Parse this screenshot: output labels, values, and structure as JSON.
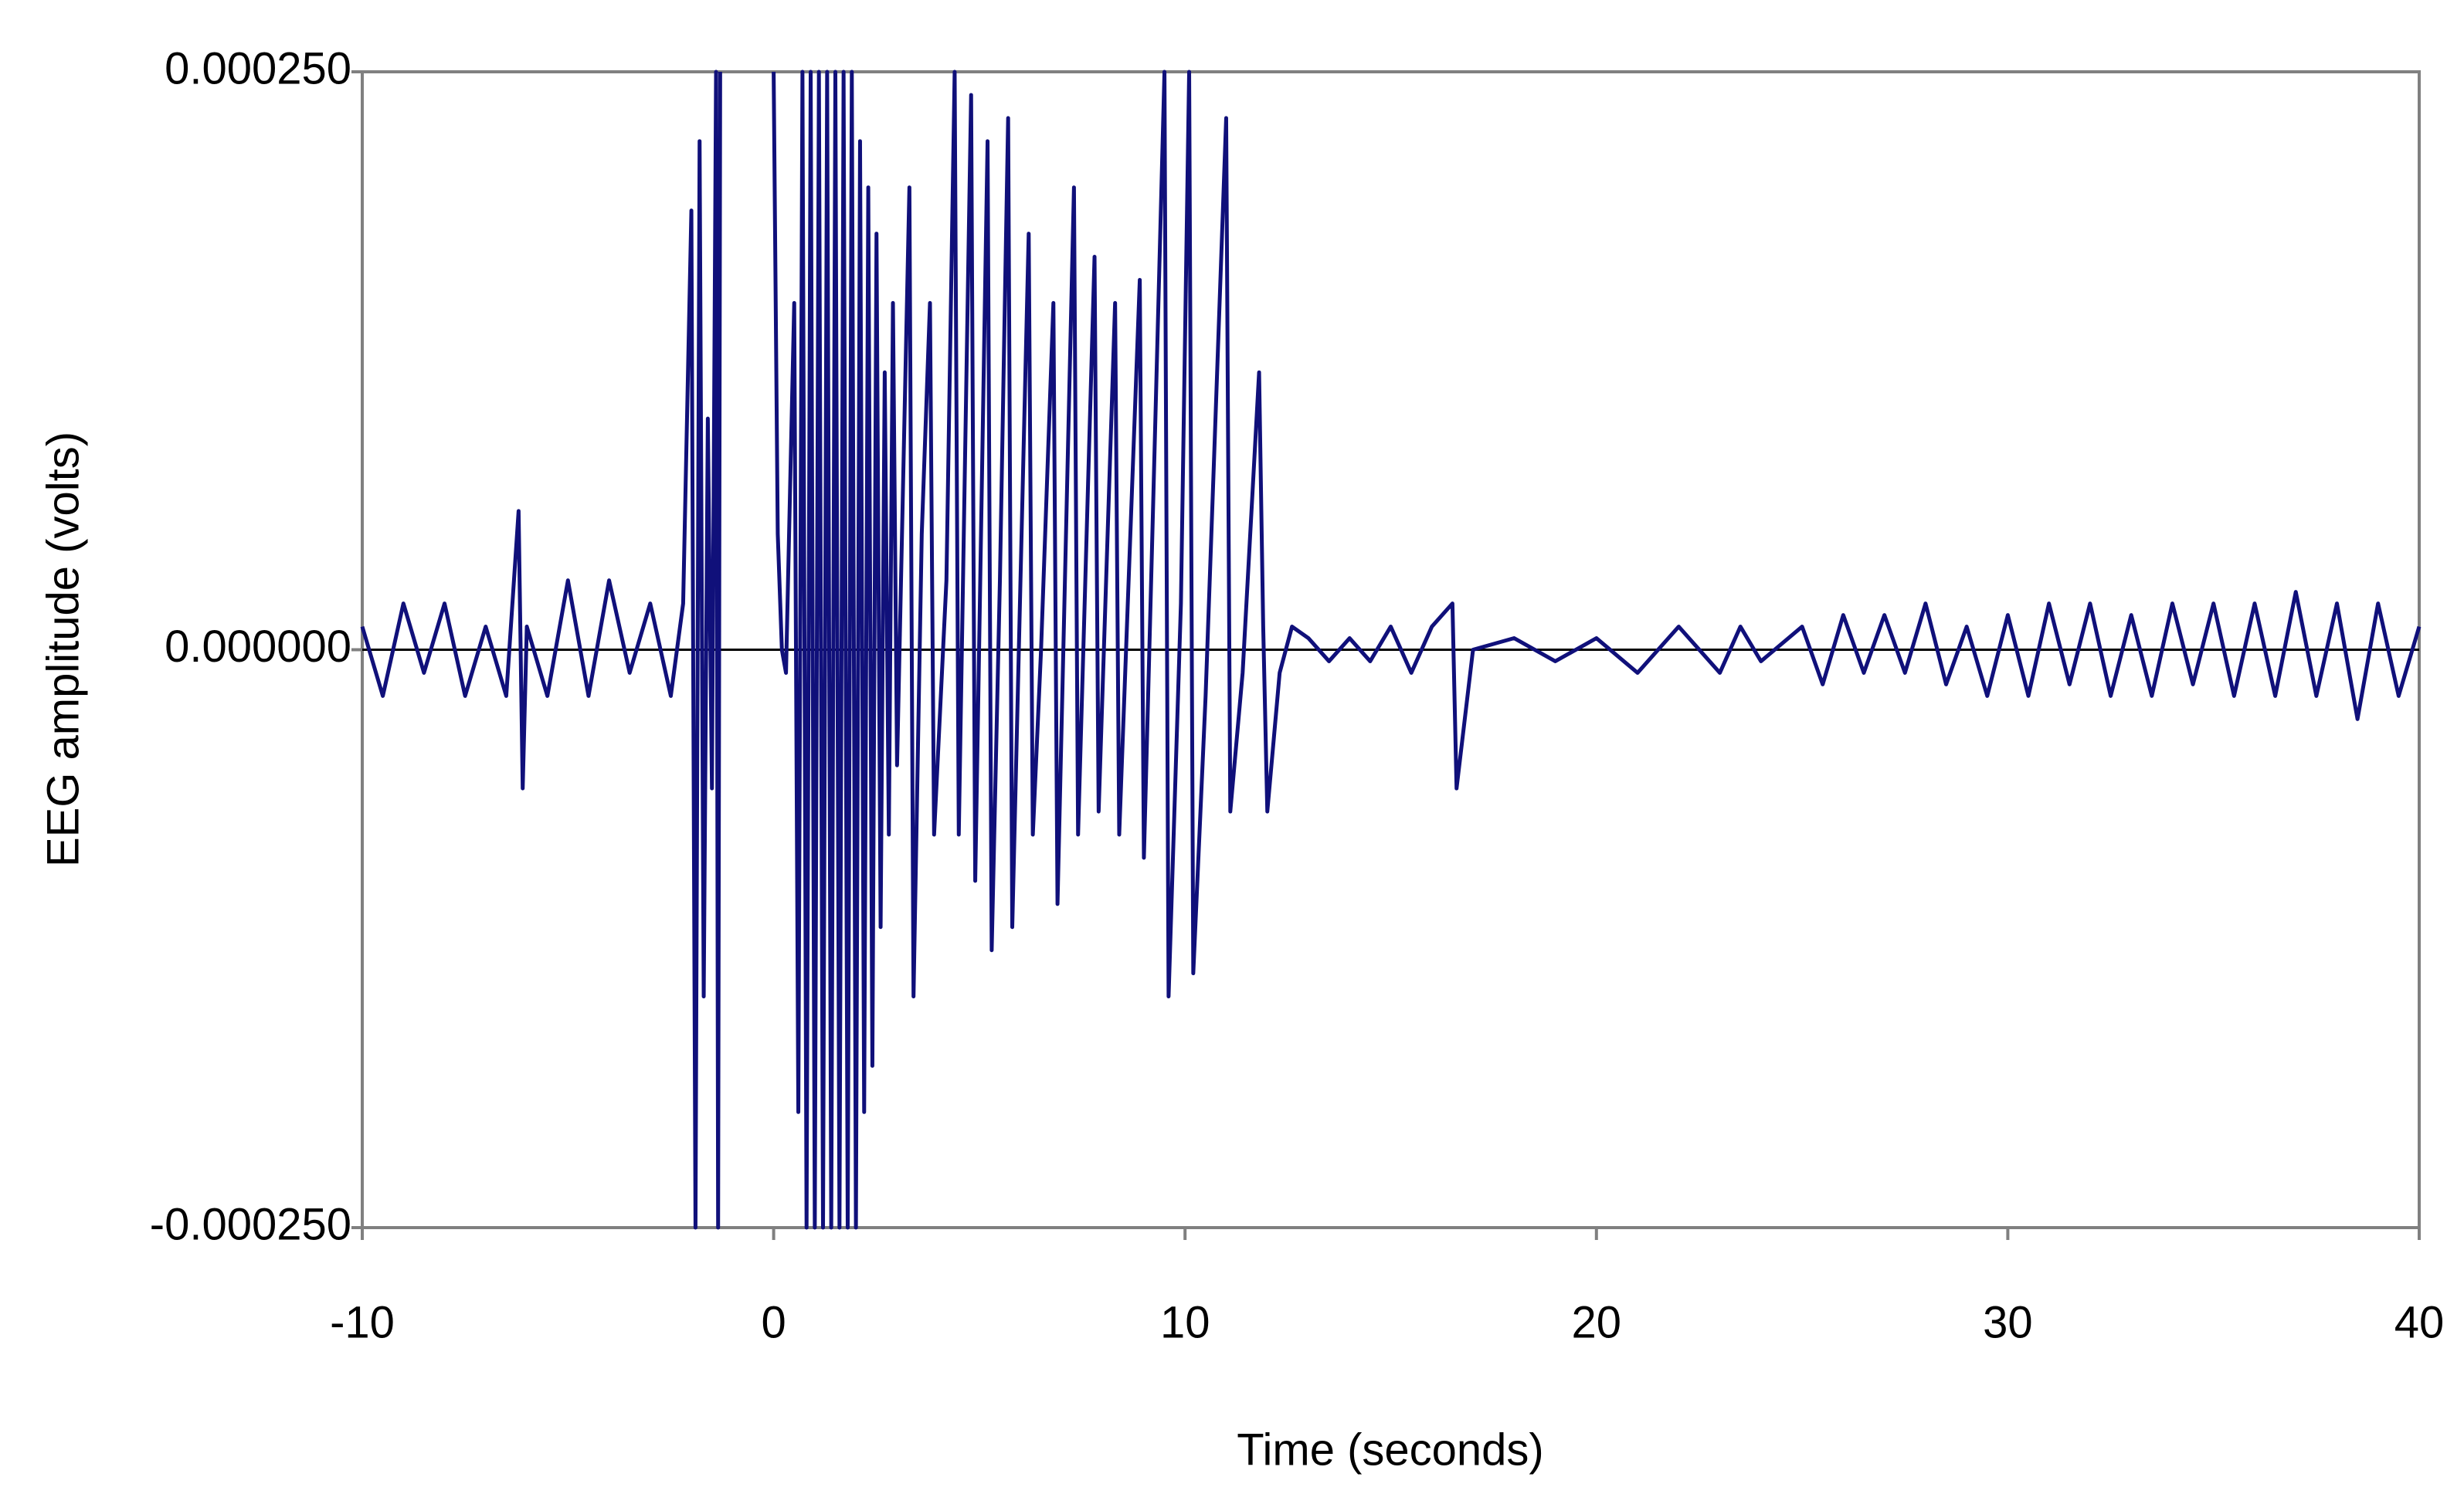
{
  "chart_data": {
    "type": "line",
    "xlabel": "Time (seconds)",
    "ylabel": "EEG amplitude (volts)",
    "xlim": [
      -10,
      40
    ],
    "ylim": [
      -0.00025,
      0.00025
    ],
    "xticks": [
      -10,
      0,
      10,
      20,
      30,
      40
    ],
    "yticks": [
      {
        "value": 0.00025,
        "label": "0.000250"
      },
      {
        "value": 0,
        "label": "0.000000"
      },
      {
        "value": -0.00025,
        "label": "-0.000250"
      }
    ],
    "grid": false,
    "x": [
      -10,
      -9.5,
      -9,
      -8.5,
      -8,
      -7.5,
      -7,
      -6.5,
      -6.2,
      -6.1,
      -6,
      -5.5,
      -5,
      -4.5,
      -4,
      -3.5,
      -3,
      -2.5,
      -2.2,
      -2,
      -1.9,
      -1.8,
      -1.7,
      -1.6,
      -1.5,
      -1.4,
      -1.35,
      -1.3,
      -1,
      0,
      0.1,
      0.2,
      0.3,
      0.5,
      0.6,
      0.7,
      0.8,
      0.9,
      1,
      1.1,
      1.2,
      1.3,
      1.4,
      1.5,
      1.6,
      1.7,
      1.8,
      1.9,
      2,
      2.1,
      2.2,
      2.3,
      2.4,
      2.5,
      2.6,
      2.7,
      2.8,
      2.9,
      3,
      3.3,
      3.4,
      3.6,
      3.8,
      3.9,
      4.2,
      4.4,
      4.5,
      4.8,
      4.9,
      5.2,
      5.3,
      5.5,
      5.7,
      5.8,
      6.2,
      6.3,
      6.5,
      6.8,
      6.9,
      7.3,
      7.4,
      7.8,
      7.9,
      8.3,
      8.4,
      8.9,
      9,
      9.5,
      9.6,
      9.9,
      10.1,
      10.2,
      10.5,
      11,
      11.1,
      11.4,
      11.8,
      11.9,
      12,
      12.3,
      12.6,
      13,
      13.5,
      14,
      14.5,
      15,
      15.5,
      16,
      16.5,
      16.6,
      17,
      18,
      19,
      20,
      21,
      22,
      23,
      23.5,
      24,
      25,
      25.5,
      26,
      26.5,
      27,
      27.5,
      28,
      28.5,
      29,
      29.5,
      30,
      30.5,
      31,
      31.5,
      32,
      32.5,
      33,
      33.5,
      34,
      34.5,
      35,
      35.5,
      36,
      36.5,
      37,
      37.5,
      38,
      38.5,
      39,
      39.5,
      40
    ],
    "series": [
      {
        "color": "#10107a",
        "values": [
          1e-05,
          -2e-05,
          2e-05,
          -1e-05,
          2e-05,
          -2e-05,
          1e-05,
          -2e-05,
          6e-05,
          -6e-05,
          1e-05,
          -2e-05,
          3e-05,
          -2e-05,
          3e-05,
          -1e-05,
          2e-05,
          -2e-05,
          2e-05,
          0.00019,
          -0.00025,
          0.00022,
          -0.00015,
          0.0001,
          -6e-05,
          0.00025,
          -0.00025,
          0.00025,
          null,
          0.00025,
          5e-05,
          0,
          -1e-05,
          0.00015,
          -0.0002,
          0.00025,
          -0.00025,
          0.00025,
          -0.00025,
          0.00025,
          -0.00025,
          0.00025,
          -0.00025,
          0.00025,
          -0.00025,
          0.00025,
          -0.00025,
          0.00025,
          -0.00025,
          0.00022,
          -0.0002,
          0.0002,
          -0.00018,
          0.00018,
          -0.00012,
          0.00012,
          -8e-05,
          0.00015,
          -5e-05,
          0.0002,
          -0.00015,
          5e-05,
          0.00015,
          -8e-05,
          3e-05,
          0.00025,
          -8e-05,
          0.00024,
          -0.0001,
          0.00022,
          -0.00013,
          3e-05,
          0.00023,
          -0.00012,
          0.00018,
          -8e-05,
          0,
          0.00015,
          -0.00011,
          0.0002,
          -8e-05,
          0.00017,
          -7e-05,
          0.00015,
          -8e-05,
          0.00016,
          -9e-05,
          0.00025,
          -0.00015,
          2e-05,
          0.00025,
          -0.00014,
          -2e-05,
          0.00023,
          -7e-05,
          -1e-05,
          0.00012,
          1e-05,
          -7e-05,
          -1e-05,
          1e-05,
          5e-06,
          -5e-06,
          5e-06,
          -5e-06,
          1e-05,
          -1e-05,
          1e-05,
          2e-05,
          -6e-05,
          0,
          5e-06,
          -5e-06,
          5e-06,
          -1e-05,
          1e-05,
          -1e-05,
          1e-05,
          -5e-06,
          1e-05,
          -1.5e-05,
          1.5e-05,
          -1e-05,
          1.5e-05,
          -1e-05,
          2e-05,
          -1.5e-05,
          1e-05,
          -2e-05,
          1.5e-05,
          -2e-05,
          2e-05,
          -1.5e-05,
          2e-05,
          -2e-05,
          1.5e-05,
          -2e-05,
          2e-05,
          -1.5e-05,
          2e-05,
          -2e-05,
          2e-05,
          -2e-05,
          2.5e-05,
          -2e-05,
          2e-05,
          -3e-05,
          2e-05,
          -2e-05,
          1e-05
        ]
      }
    ]
  }
}
